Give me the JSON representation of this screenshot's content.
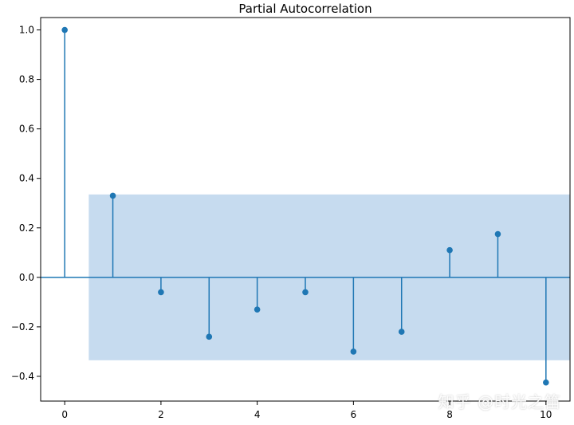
{
  "chart_data": {
    "type": "stem",
    "title": "Partial Autocorrelation",
    "xlabel": "",
    "ylabel": "",
    "xlim": [
      -0.5,
      10.5
    ],
    "ylim": [
      -0.5,
      1.05
    ],
    "x_ticks": [
      0,
      2,
      4,
      6,
      8,
      10
    ],
    "y_ticks": [
      -0.4,
      -0.2,
      0.0,
      0.2,
      0.4,
      0.6,
      0.8,
      1.0
    ],
    "x_tick_labels": [
      "0",
      "2",
      "4",
      "6",
      "8",
      "10"
    ],
    "y_tick_labels": [
      "−0.4",
      "−0.2",
      "0.0",
      "0.2",
      "0.4",
      "0.6",
      "0.8",
      "1.0"
    ],
    "series": [
      {
        "lags": [
          0,
          1,
          2,
          3,
          4,
          5,
          6,
          7,
          8,
          9,
          10
        ],
        "values": [
          1.0,
          0.33,
          -0.06,
          -0.24,
          -0.13,
          -0.06,
          -0.3,
          -0.22,
          0.11,
          0.175,
          -0.425
        ]
      }
    ],
    "confidence_band": {
      "x_range": [
        0.5,
        10.5
      ],
      "lower": -0.335,
      "upper": 0.335
    },
    "grid": false,
    "colors": {
      "stem": "#1f77b4",
      "band": "#c6dbef",
      "axis": "#000000"
    }
  },
  "watermark": "知乎 @时光之笛"
}
